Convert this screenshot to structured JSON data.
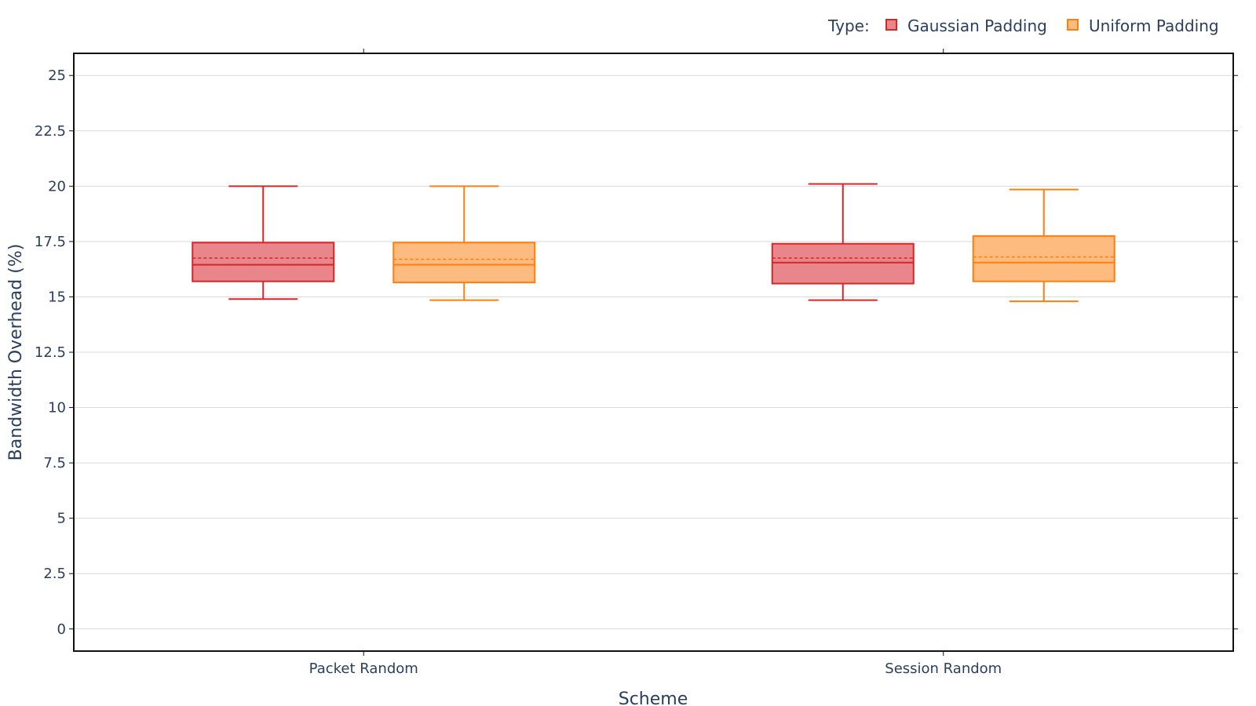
{
  "chart_data": {
    "type": "box",
    "xlabel": "Scheme",
    "ylabel": "Bandwidth Overhead (%)",
    "categories": [
      "Packet Random",
      "Session Random"
    ],
    "ylim": [
      -1,
      26
    ],
    "yticks": [
      0,
      2.5,
      5,
      7.5,
      10,
      12.5,
      15,
      17.5,
      20,
      22.5,
      25
    ],
    "ytick_labels": [
      "0",
      "2.5",
      "5",
      "7.5",
      "10",
      "12.5",
      "15",
      "17.5",
      "20",
      "22.5",
      "25"
    ],
    "grid": true,
    "legend": {
      "title": "Type:",
      "placement": "top-right",
      "entries": [
        "Gaussian Padding",
        "Uniform Padding"
      ]
    },
    "series": [
      {
        "name": "Gaussian Padding",
        "line_color": "#d62728",
        "fill_color": "#e8868c",
        "boxes": [
          {
            "category": "Packet Random",
            "min": 14.9,
            "q1": 15.7,
            "median": 16.45,
            "mean": 16.75,
            "q3": 17.45,
            "max": 20.0
          },
          {
            "category": "Session Random",
            "min": 14.85,
            "q1": 15.6,
            "median": 16.55,
            "mean": 16.75,
            "q3": 17.4,
            "max": 20.1
          }
        ]
      },
      {
        "name": "Uniform Padding",
        "line_color": "#ff7f0e",
        "fill_color": "#fdbb7f",
        "boxes": [
          {
            "category": "Packet Random",
            "min": 14.85,
            "q1": 15.65,
            "median": 16.45,
            "mean": 16.7,
            "q3": 17.45,
            "max": 20.0
          },
          {
            "category": "Session Random",
            "min": 14.8,
            "q1": 15.7,
            "median": 16.55,
            "mean": 16.8,
            "q3": 17.75,
            "max": 19.85
          }
        ]
      }
    ]
  }
}
